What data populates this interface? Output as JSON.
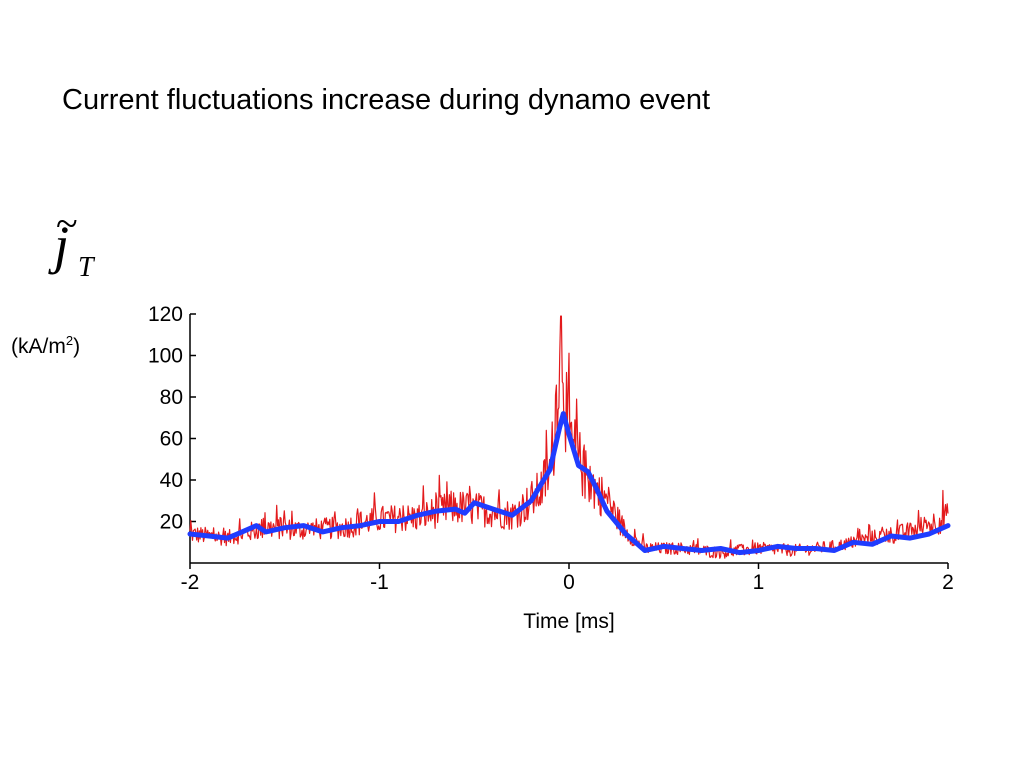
{
  "slide": {
    "title": "Current fluctuations increase during dynamo event"
  },
  "chart_data": {
    "type": "line",
    "xlabel": "Time [ms]",
    "ylabel_symbol": {
      "base": "j",
      "subscript": "T",
      "accent": "~"
    },
    "ylabel_unit": {
      "prefix": "(kA/m",
      "superscript": "2",
      "suffix": ")"
    },
    "xlim": [
      -2,
      2
    ],
    "ylim": [
      0,
      120
    ],
    "x_ticks": [
      -2,
      -1,
      0,
      1,
      2
    ],
    "y_ticks": [
      20,
      40,
      60,
      80,
      100,
      120
    ],
    "grid": false,
    "series": [
      {
        "role": "raw",
        "color": "#e31a1c",
        "x": [
          -2.0,
          -1.8,
          -1.6,
          -1.4,
          -1.2,
          -1.0,
          -0.8,
          -0.6,
          -0.4,
          -0.3,
          -0.2,
          -0.15,
          -0.1,
          -0.08,
          -0.06,
          -0.04,
          -0.02,
          0.0,
          0.05,
          0.1,
          0.2,
          0.3,
          0.4,
          0.6,
          0.8,
          1.0,
          1.2,
          1.4,
          1.6,
          1.8,
          2.0
        ],
        "y": [
          14,
          12,
          17,
          16,
          17,
          21,
          22,
          27,
          25,
          23,
          30,
          35,
          45,
          60,
          90,
          118,
          80,
          60,
          50,
          40,
          30,
          15,
          7,
          7,
          5,
          7,
          6,
          8,
          12,
          15,
          22
        ]
      },
      {
        "role": "smoothed",
        "color": "#1f3cff",
        "x": [
          -2.0,
          -1.9,
          -1.8,
          -1.7,
          -1.65,
          -1.6,
          -1.5,
          -1.4,
          -1.3,
          -1.2,
          -1.1,
          -1.0,
          -0.9,
          -0.8,
          -0.7,
          -0.6,
          -0.55,
          -0.5,
          -0.4,
          -0.3,
          -0.2,
          -0.1,
          -0.05,
          -0.03,
          0.0,
          0.05,
          0.1,
          0.15,
          0.2,
          0.3,
          0.4,
          0.5,
          0.6,
          0.7,
          0.8,
          0.9,
          1.0,
          1.1,
          1.2,
          1.3,
          1.4,
          1.5,
          1.6,
          1.7,
          1.8,
          1.9,
          2.0
        ],
        "y": [
          14,
          13,
          12,
          16,
          18,
          15,
          17,
          18,
          15,
          17,
          18,
          20,
          20,
          23,
          25,
          26,
          24,
          29,
          26,
          23,
          30,
          45,
          65,
          72,
          62,
          47,
          44,
          35,
          25,
          14,
          6,
          8,
          7,
          6,
          7,
          5,
          6,
          8,
          7,
          7,
          6,
          10,
          9,
          13,
          12,
          14,
          18
        ]
      }
    ]
  }
}
